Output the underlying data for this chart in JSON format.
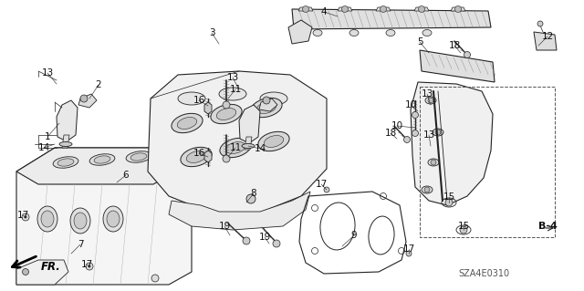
{
  "bg_color": "#ffffff",
  "diagram_code": "SZA4E0310",
  "ref_label": "B-4",
  "fr_label": "FR.",
  "labels": [
    [
      "1",
      55,
      152
    ],
    [
      "2",
      108,
      95
    ],
    [
      "3",
      234,
      38
    ],
    [
      "4",
      355,
      15
    ],
    [
      "5",
      460,
      48
    ],
    [
      "6",
      138,
      193
    ],
    [
      "7",
      90,
      268
    ],
    [
      "8",
      278,
      213
    ],
    [
      "9",
      390,
      258
    ],
    [
      "10",
      450,
      118
    ],
    [
      "10",
      435,
      138
    ],
    [
      "11",
      255,
      100
    ],
    [
      "11",
      255,
      162
    ],
    [
      "12",
      598,
      42
    ],
    [
      "13",
      55,
      82
    ],
    [
      "13",
      255,
      88
    ],
    [
      "13",
      468,
      105
    ],
    [
      "13",
      468,
      148
    ],
    [
      "14",
      52,
      162
    ],
    [
      "14",
      285,
      165
    ],
    [
      "15",
      492,
      218
    ],
    [
      "15",
      508,
      248
    ],
    [
      "16",
      220,
      112
    ],
    [
      "16",
      220,
      168
    ],
    [
      "17",
      28,
      238
    ],
    [
      "17",
      98,
      290
    ],
    [
      "17",
      355,
      205
    ],
    [
      "17",
      448,
      275
    ],
    [
      "18",
      498,
      52
    ],
    [
      "18",
      430,
      148
    ],
    [
      "19",
      248,
      250
    ],
    [
      "19",
      290,
      262
    ]
  ]
}
